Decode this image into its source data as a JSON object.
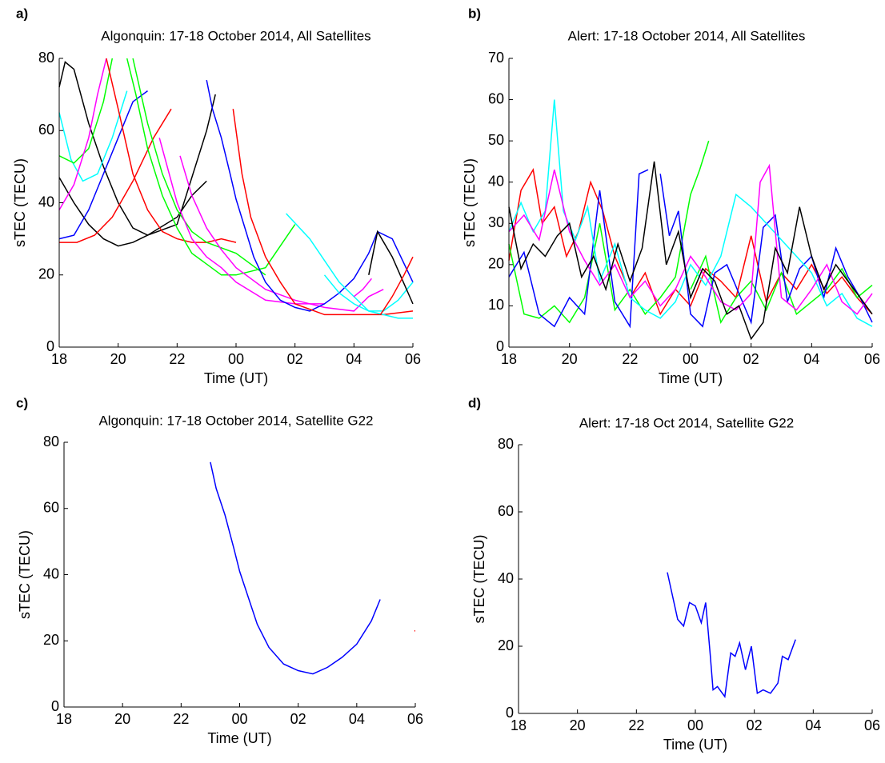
{
  "chart_data": [
    {
      "type": "line",
      "panel_label": "a)",
      "title": "Algonquin: 17-18 October 2014, All Satellites",
      "xlabel": "Time (UT)",
      "ylabel": "sTEC (TECU)",
      "xlim": [
        18,
        30
      ],
      "ylim": [
        0,
        80
      ],
      "xticks": [
        18,
        20,
        22,
        {
          "value": 24,
          "label": "00"
        },
        {
          "value": 26,
          "label": "02"
        },
        {
          "value": 28,
          "label": "04"
        },
        {
          "value": 30,
          "label": "06"
        }
      ],
      "yticks": [
        0,
        20,
        40,
        60,
        80
      ],
      "series": [
        {
          "color": "#000000",
          "x": [
            18,
            18.2,
            18.5,
            19,
            19.5,
            20,
            20.5,
            21,
            22,
            23,
            23.3
          ],
          "values": [
            72,
            79,
            77,
            62,
            50,
            40,
            33,
            31,
            34,
            60,
            70
          ]
        },
        {
          "color": "#000000",
          "x": [
            18,
            18.5,
            19,
            19.5,
            20,
            20.5,
            21,
            22,
            22.5,
            23
          ],
          "values": [
            47,
            40,
            34,
            30,
            28,
            29,
            31,
            36,
            42,
            46
          ]
        },
        {
          "color": "#00ffff",
          "x": [
            18,
            18.4,
            18.8,
            19.3,
            19.8,
            20.3
          ],
          "values": [
            65,
            52,
            46,
            48,
            58,
            71
          ]
        },
        {
          "color": "#00ff00",
          "x": [
            18,
            18.5,
            19,
            19.5,
            19.8
          ],
          "values": [
            53,
            51,
            55,
            68,
            80
          ]
        },
        {
          "color": "#ff00ff",
          "x": [
            18,
            18.5,
            19,
            19.3,
            19.6
          ],
          "values": [
            38,
            45,
            58,
            70,
            80
          ]
        },
        {
          "color": "#0000ff",
          "x": [
            18,
            18.5,
            19,
            19.5,
            20,
            20.5,
            21
          ],
          "values": [
            30,
            31,
            38,
            48,
            58,
            68,
            71
          ]
        },
        {
          "color": "#ff0000",
          "x": [
            18,
            18.6,
            19.2,
            19.8,
            20.5,
            21.2,
            21.8
          ],
          "values": [
            29,
            29,
            31,
            36,
            46,
            58,
            66
          ]
        },
        {
          "color": "#ff0000",
          "x": [
            19.6,
            20,
            20.5,
            21,
            21.5,
            22,
            22.5,
            23,
            23.5,
            24
          ],
          "values": [
            80,
            66,
            48,
            38,
            32,
            30,
            29,
            29,
            30,
            29
          ]
        },
        {
          "color": "#00ff00",
          "x": [
            20.3,
            20.6,
            21,
            21.5,
            22,
            22.5,
            23,
            23.5,
            24,
            25,
            25.5,
            26
          ],
          "values": [
            80,
            70,
            55,
            42,
            33,
            26,
            23,
            20,
            20,
            22,
            28,
            34
          ]
        },
        {
          "color": "#00ff00",
          "x": [
            20.5,
            21,
            21.5,
            22,
            22.5,
            23,
            24,
            25
          ],
          "values": [
            80,
            62,
            48,
            38,
            32,
            29,
            26,
            20
          ]
        },
        {
          "color": "#ff00ff",
          "x": [
            21.4,
            22,
            22.5,
            23,
            23.5,
            24,
            25,
            26,
            27
          ],
          "values": [
            58,
            40,
            30,
            25,
            22,
            18,
            13,
            12,
            12
          ]
        },
        {
          "color": "#ff00ff",
          "x": [
            22.1,
            22.5,
            23,
            23.5,
            24,
            25,
            26,
            27,
            28,
            28.5,
            29
          ],
          "values": [
            53,
            42,
            33,
            27,
            22,
            16,
            13,
            11,
            10,
            14,
            16
          ]
        },
        {
          "color": "#0000ff",
          "x": [
            23,
            23.2,
            23.5,
            23.8,
            24,
            24.3,
            24.6,
            25,
            25.5,
            26,
            26.5,
            27,
            27.5,
            28,
            28.5,
            28.8,
            29.3,
            30
          ],
          "values": [
            74,
            66,
            58,
            48,
            41,
            33,
            25,
            18,
            13,
            11,
            10,
            12,
            15,
            19,
            26,
            32,
            30,
            18
          ]
        },
        {
          "color": "#ff0000",
          "x": [
            23.9,
            24.2,
            24.5,
            25,
            25.5,
            26,
            27,
            28,
            29,
            30
          ],
          "values": [
            66,
            48,
            36,
            25,
            18,
            12,
            9,
            9,
            9,
            10
          ]
        },
        {
          "color": "#00ffff",
          "x": [
            25.7,
            26.5,
            27.5,
            28.5,
            29.5,
            30
          ],
          "values": [
            37,
            30,
            18,
            10,
            8,
            8
          ]
        },
        {
          "color": "#00ffff",
          "x": [
            27,
            27.5,
            28,
            28.5,
            29,
            29.5,
            30
          ],
          "values": [
            20,
            15,
            12,
            10,
            10,
            13,
            18
          ]
        },
        {
          "color": "#000000",
          "x": [
            28.5,
            28.8,
            29.3,
            30
          ],
          "values": [
            20,
            32,
            25,
            12
          ]
        },
        {
          "color": "#ff0000",
          "x": [
            28.9,
            29.3,
            29.7,
            30
          ],
          "values": [
            9,
            14,
            20,
            25
          ]
        },
        {
          "color": "#ff00ff",
          "x": [
            28,
            28.3,
            28.6
          ],
          "values": [
            14,
            16,
            19
          ]
        }
      ]
    },
    {
      "type": "line",
      "panel_label": "b)",
      "title": "Alert: 17-18 October 2014, All Satellites",
      "xlabel": "Time (UT)",
      "ylabel": "sTEC (TECU)",
      "xlim": [
        18,
        30
      ],
      "ylim": [
        0,
        70
      ],
      "xticks": [
        18,
        20,
        22,
        {
          "value": 24,
          "label": "00"
        },
        {
          "value": 26,
          "label": "02"
        },
        {
          "value": 28,
          "label": "04"
        },
        {
          "value": 30,
          "label": "06"
        }
      ],
      "yticks": [
        0,
        10,
        20,
        30,
        40,
        50,
        60,
        70
      ],
      "series": [
        {
          "color": "#ff0000",
          "x": [
            18,
            18.4,
            18.8,
            19.1,
            19.5,
            19.9,
            20.3,
            20.7,
            21.1,
            21.5,
            21.9
          ],
          "values": [
            21,
            38,
            43,
            30,
            34,
            22,
            28,
            40,
            33,
            22,
            15
          ]
        },
        {
          "color": "#ff0000",
          "x": [
            22,
            22.5,
            23,
            23.5,
            24,
            24.5,
            25,
            25.5,
            26,
            26.5,
            27,
            27.5,
            28,
            28.5,
            29,
            29.5,
            30
          ],
          "values": [
            12,
            18,
            8,
            14,
            10,
            19,
            16,
            12,
            27,
            11,
            18,
            14,
            20,
            13,
            17,
            12,
            8
          ]
        },
        {
          "color": "#00ff00",
          "x": [
            18,
            18.5,
            19,
            19.5,
            20,
            20.5,
            21,
            21.5,
            22,
            22.5,
            23,
            23.5,
            24,
            24.3,
            24.6
          ],
          "values": [
            25,
            8,
            7,
            10,
            6,
            12,
            30,
            9,
            14,
            8,
            12,
            17,
            37,
            43,
            50
          ]
        },
        {
          "color": "#00ff00",
          "x": [
            24,
            24.5,
            25,
            25.5,
            26,
            26.5,
            27,
            27.5,
            28,
            28.5,
            29,
            29.5,
            30
          ],
          "values": [
            14,
            22,
            6,
            12,
            16,
            9,
            18,
            8,
            11,
            14,
            19,
            12,
            15
          ]
        },
        {
          "color": "#0000ff",
          "x": [
            18,
            18.5,
            19,
            19.5,
            20,
            20.5,
            21,
            21.5,
            22,
            22.3,
            22.6
          ],
          "values": [
            17,
            23,
            8,
            5,
            12,
            8,
            38,
            11,
            5,
            42,
            43
          ]
        },
        {
          "color": "#0000ff",
          "x": [
            23,
            23.3,
            23.6,
            24,
            24.4,
            24.8,
            25.2,
            25.6,
            26,
            26.4,
            26.8,
            27.2,
            27.6,
            28,
            28.4,
            28.8,
            29.2,
            29.6,
            30
          ],
          "values": [
            42,
            27,
            33,
            8,
            5,
            18,
            20,
            13,
            6,
            29,
            32,
            11,
            19,
            22,
            12,
            24,
            17,
            12,
            6
          ]
        },
        {
          "color": "#00ffff",
          "x": [
            18,
            18.4,
            18.8,
            19.2,
            19.5,
            19.8,
            20.2,
            20.6,
            21,
            21.5,
            22,
            22.5,
            23,
            23.5,
            24,
            24.5,
            25,
            25.5,
            26,
            26.5,
            27,
            27.5,
            28,
            28.5,
            29,
            29.5,
            30
          ],
          "values": [
            28,
            35,
            28,
            33,
            60,
            33,
            26,
            34,
            16,
            25,
            12,
            9,
            7,
            11,
            20,
            15,
            22,
            37,
            34,
            30,
            26,
            22,
            18,
            10,
            13,
            7,
            5
          ]
        },
        {
          "color": "#ff00ff",
          "x": [
            18,
            18.5,
            19,
            19.5,
            20,
            20.5,
            21,
            21.5,
            22,
            22.5,
            23,
            23.5,
            24,
            24.5,
            25,
            25.5,
            26,
            26.3,
            26.6,
            27,
            27.5,
            28,
            28.5,
            29,
            29.5,
            30
          ],
          "values": [
            28,
            32,
            26,
            43,
            28,
            21,
            15,
            20,
            12,
            16,
            10,
            14,
            22,
            17,
            11,
            9,
            13,
            40,
            44,
            12,
            9,
            14,
            20,
            11,
            8,
            13
          ]
        },
        {
          "color": "#000000",
          "x": [
            18,
            18.4,
            18.8,
            19.2,
            19.6,
            20,
            20.4,
            20.8,
            21.2,
            21.6,
            22,
            22.4,
            22.8,
            23.2,
            23.6,
            24,
            24.4,
            24.8,
            25.2,
            25.6,
            26,
            26.4,
            26.8,
            27.2,
            27.6,
            28,
            28.4,
            28.8,
            29.2,
            29.6,
            30
          ],
          "values": [
            34,
            19,
            25,
            22,
            27,
            30,
            17,
            22,
            14,
            25,
            16,
            24,
            45,
            20,
            28,
            12,
            19,
            16,
            8,
            10,
            2,
            6,
            24,
            18,
            34,
            22,
            14,
            20,
            16,
            12,
            8
          ]
        }
      ]
    },
    {
      "type": "line",
      "panel_label": "c)",
      "title": "Algonquin: 17-18 October 2014, Satellite G22",
      "xlabel": "Time (UT)",
      "ylabel": "sTEC (TECU)",
      "xlim": [
        18,
        30
      ],
      "ylim": [
        0,
        80
      ],
      "xticks": [
        18,
        20,
        22,
        {
          "value": 24,
          "label": "00"
        },
        {
          "value": 26,
          "label": "02"
        },
        {
          "value": 28,
          "label": "04"
        },
        {
          "value": 30,
          "label": "06"
        }
      ],
      "yticks": [
        0,
        20,
        40,
        60,
        80
      ],
      "series": [
        {
          "color": "#0000ff",
          "x": [
            23,
            23.2,
            23.5,
            23.8,
            24,
            24.3,
            24.6,
            25,
            25.5,
            26,
            26.5,
            27,
            27.5,
            28,
            28.5,
            28.8
          ],
          "values": [
            74,
            66,
            58,
            48,
            41,
            33,
            25,
            18,
            13,
            11,
            10,
            12,
            15,
            19,
            26,
            32.5
          ]
        },
        {
          "color": "#ff0000",
          "x": [
            29.97,
            30
          ],
          "values": [
            23,
            23
          ]
        }
      ]
    },
    {
      "type": "line",
      "panel_label": "d)",
      "title": "Alert: 17-18 Oct 2014, Satellite G22",
      "xlabel": "Time (UT)",
      "ylabel": "sTEC (TECU)",
      "xlim": [
        18,
        30
      ],
      "ylim": [
        0,
        80
      ],
      "xticks": [
        18,
        20,
        22,
        {
          "value": 24,
          "label": "00"
        },
        {
          "value": 26,
          "label": "02"
        },
        {
          "value": 28,
          "label": "04"
        },
        {
          "value": 30,
          "label": "06"
        }
      ],
      "yticks": [
        0,
        20,
        40,
        60,
        80
      ],
      "series": [
        {
          "color": "#0000ff",
          "x": [
            23.05,
            23.4,
            23.6,
            23.8,
            24,
            24.2,
            24.35,
            24.5,
            24.6,
            24.75,
            25,
            25.2,
            25.35,
            25.5,
            25.7,
            25.9,
            26.1,
            26.3,
            26.55,
            26.8,
            26.95,
            27.15,
            27.4
          ],
          "values": [
            42,
            28,
            26,
            33,
            32,
            27,
            33,
            18,
            7,
            8,
            5,
            18,
            17,
            21,
            13,
            20,
            6,
            7,
            6,
            9,
            17,
            16,
            22
          ]
        }
      ]
    }
  ]
}
